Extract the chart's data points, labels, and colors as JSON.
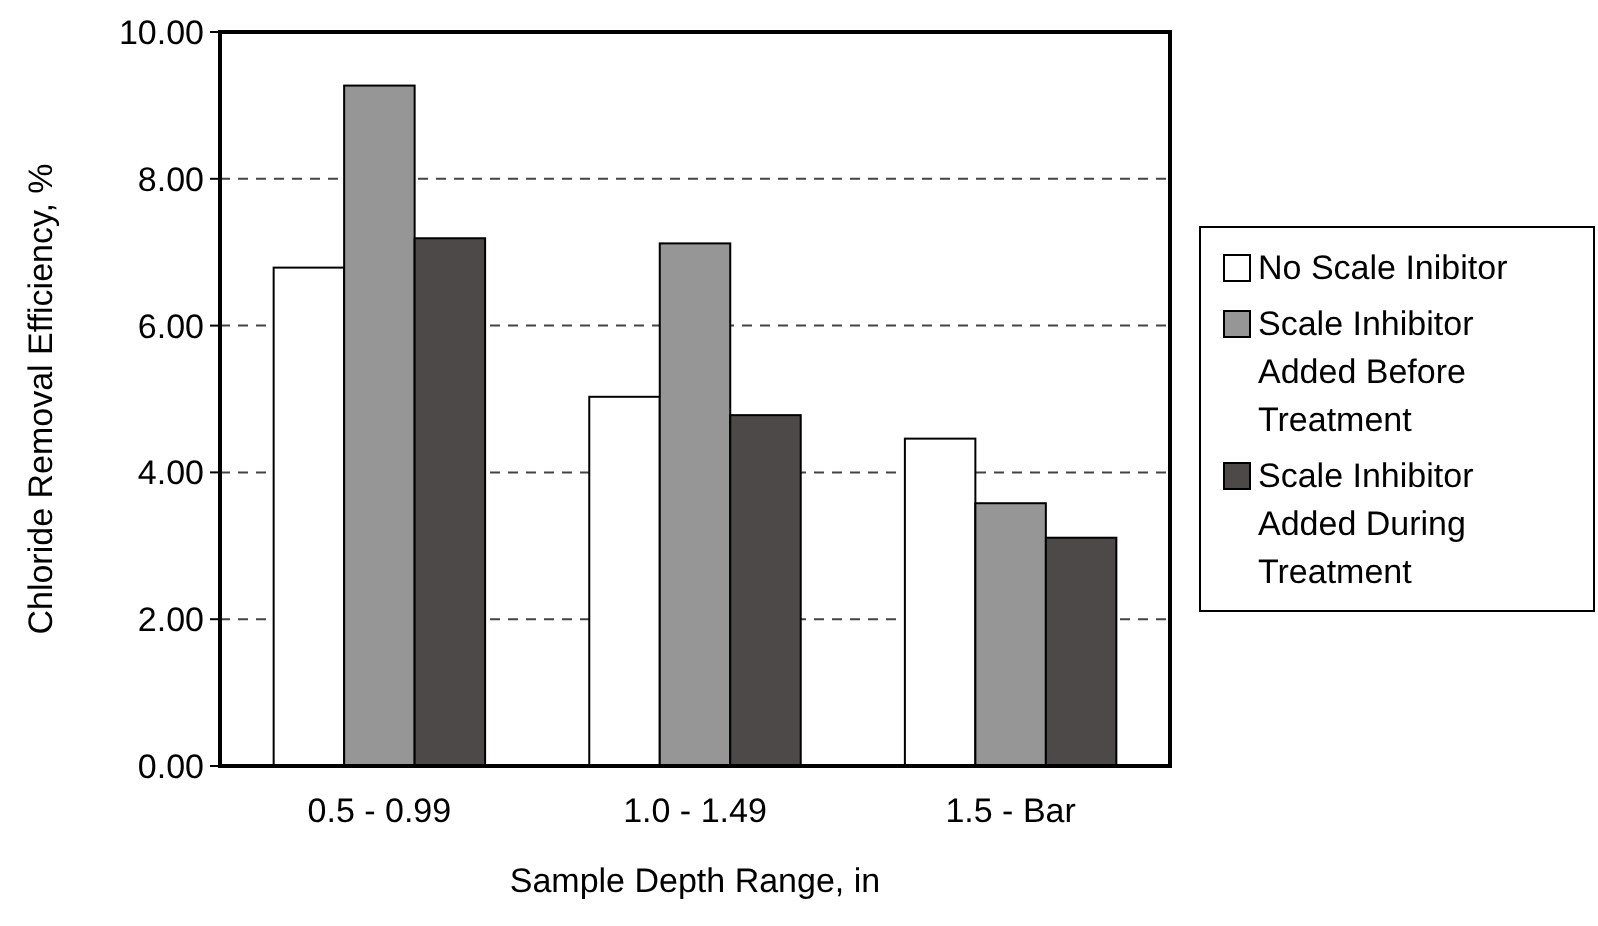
{
  "chart_data": {
    "type": "bar",
    "xlabel": "Sample Depth Range, in",
    "ylabel": "Chloride Removal Efficiency, %",
    "categories": [
      "0.5 - 0.99",
      "1.0 - 1.49",
      "1.5 - Bar"
    ],
    "series": [
      {
        "name": "No Scale Inibitor",
        "color": "#ffffff",
        "values": [
          6.79,
          5.03,
          4.46
        ]
      },
      {
        "name": "Scale Inhibitor Added Before Treatment",
        "color": "#969696",
        "values": [
          9.27,
          7.12,
          3.58
        ]
      },
      {
        "name": "Scale Inhibitor Added During Treatment",
        "color": "#4d4948",
        "values": [
          7.19,
          4.78,
          3.11
        ]
      }
    ],
    "ylim": [
      0,
      10
    ],
    "yticks": [
      {
        "value": 0,
        "label": "0.00"
      },
      {
        "value": 2,
        "label": "2.00"
      },
      {
        "value": 4,
        "label": "4.00"
      },
      {
        "value": 6,
        "label": "6.00"
      },
      {
        "value": 8,
        "label": "8.00"
      },
      {
        "value": 10,
        "label": "10.00"
      }
    ],
    "grid": "y",
    "legend": "right"
  }
}
